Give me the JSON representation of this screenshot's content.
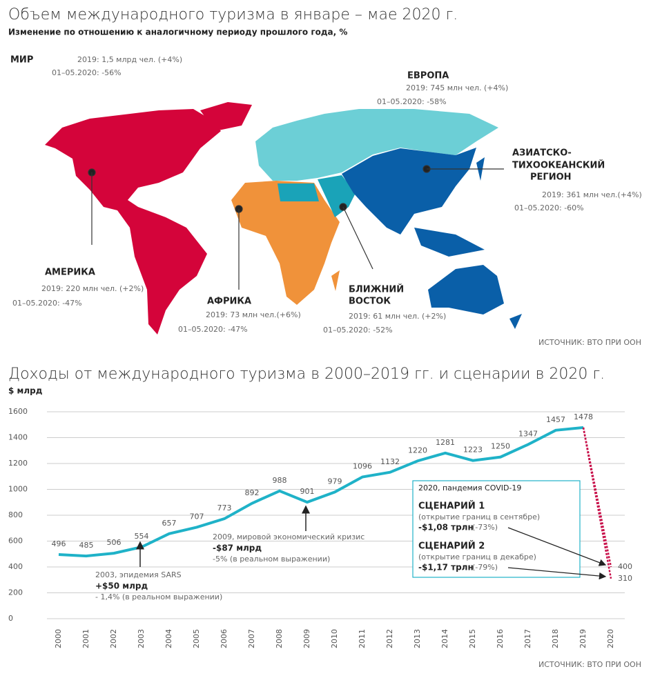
{
  "map": {
    "title": "Объем международного туризма в январе – мае 2020 г.",
    "subtitle": "Изменение по отношению к аналогичному периоду прошлого года, %",
    "source": "ИСТОЧНИК: ВТО ПРИ ООН",
    "regions": [
      {
        "name_lines": [
          "МИР"
        ],
        "stat_2019": "2019: 1,5 млрд чел. (+4%)",
        "stat_2020": "01–05.2020: -56%"
      },
      {
        "name_lines": [
          "ЕВРОПА"
        ],
        "stat_2019": "2019: 745 млн чел. (+4%)",
        "stat_2020": "01–05.2020: -58%"
      },
      {
        "name_lines": [
          "АЗИАТСКО-",
          "ТИХООКЕАНСКИЙ",
          "РЕГИОН"
        ],
        "stat_2019": "2019: 361 млн чел.(+4%)",
        "stat_2020": "01–05.2020: -60%"
      },
      {
        "name_lines": [
          "АМЕРИКА"
        ],
        "stat_2019": "2019: 220 млн чел. (+2%)",
        "stat_2020": "01–05.2020: -47%"
      },
      {
        "name_lines": [
          "АФРИКА"
        ],
        "stat_2019": "2019: 73 млн чел.(+6%)",
        "stat_2020": "01–05.2020: -47%"
      },
      {
        "name_lines": [
          "БЛИЖНИЙ",
          "ВОСТОК"
        ],
        "stat_2019": "2019: 61 млн чел. (+2%)",
        "stat_2020": "01–05.2020: -52%"
      }
    ]
  },
  "chart_data": {
    "type": "line",
    "title": "Доходы от международного туризма в 2000–2019 гг. и сценарии в 2020 г.",
    "y_label": "$ млрд",
    "color": "#1fb2c8",
    "grid": true,
    "x": [
      2000,
      2001,
      2002,
      2003,
      2004,
      2005,
      2006,
      2007,
      2008,
      2009,
      2010,
      2011,
      2012,
      2013,
      2014,
      2015,
      2016,
      2017,
      2018,
      2019,
      2020
    ],
    "values": [
      496,
      485,
      506,
      554,
      657,
      707,
      773,
      892,
      988,
      901,
      979,
      1096,
      1132,
      1220,
      1281,
      1223,
      1250,
      1347,
      1457,
      1478,
      null
    ],
    "xlim": [
      2000,
      2020
    ],
    "ylim": [
      0,
      1600
    ],
    "yticks": [
      0,
      200,
      400,
      600,
      800,
      1000,
      1200,
      1400,
      1600
    ],
    "annotations": [
      {
        "lines": [
          "2003, эпидемия SARS",
          "+$50 млрд",
          "- 1,4% (в реальном выражении)"
        ]
      },
      {
        "lines": [
          "2009, мировой экономический кризис",
          "-$87 млрд",
          "-5% (в реальном выражении)"
        ]
      }
    ],
    "scenario_box": {
      "title": "2020, пандемия COVID-19",
      "color": "#c8104a",
      "scenarios": [
        {
          "name": "СЦЕНАРИЙ 1",
          "note": "(открытие границ в сентябре)",
          "loss": "-$1,08 трлн",
          "pct": "(-73%)",
          "value": 400
        },
        {
          "name": "СЦЕНАРИЙ 2",
          "note": "(открытие границ в декабре)",
          "loss": "-$1,17 трлн",
          "pct": "(-79%)",
          "value": 310
        }
      ]
    },
    "source": "ИСТОЧНИК: ВТО ПРИ ООН"
  }
}
